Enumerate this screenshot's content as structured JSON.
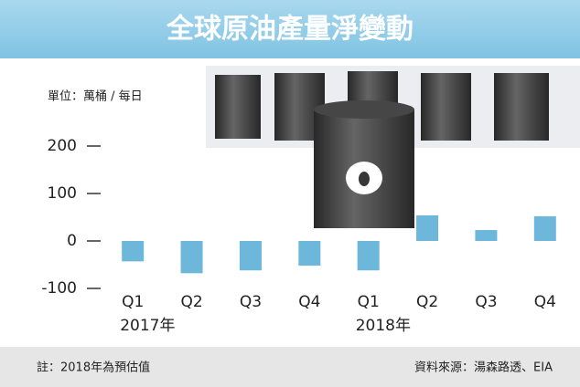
{
  "chart_data": {
    "type": "bar",
    "title": "全球原油產量淨變動",
    "unit_label": "單位：萬桶 / 每日",
    "categories": [
      "Q1",
      "Q2",
      "Q3",
      "Q4",
      "Q1",
      "Q2",
      "Q3",
      "Q4"
    ],
    "group_labels": [
      "2017年",
      "2018年"
    ],
    "values": [
      -43,
      -68,
      -62,
      -52,
      -62,
      54,
      23,
      52
    ],
    "color": "#6db7db",
    "ylim": [
      -100,
      200
    ],
    "yticks": [
      -100,
      0,
      100,
      200
    ],
    "note": "註：2018年為預估值",
    "source": "資料來源：湯森路透、EIA"
  }
}
